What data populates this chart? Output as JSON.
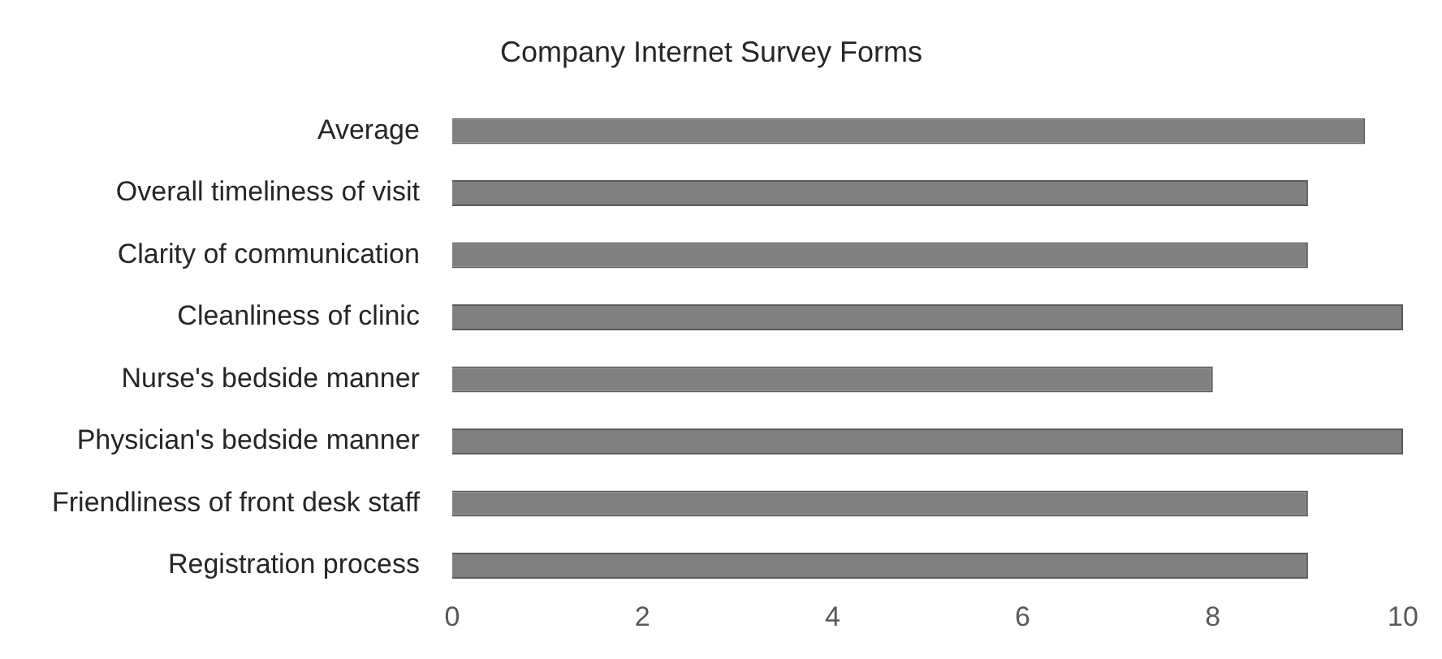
{
  "chart_data": {
    "type": "bar",
    "orientation": "horizontal",
    "title": "Company Internet Survey Forms",
    "categories": [
      "Average",
      "Overall timeliness of visit",
      "Clarity of communication",
      "Cleanliness of clinic",
      "Nurse's bedside manner",
      "Physician's bedside manner",
      "Friendliness of front desk staff",
      "Registration process"
    ],
    "values": [
      9.6,
      9,
      9,
      10,
      8,
      10,
      9,
      9
    ],
    "color": "#808080",
    "xlim": [
      0,
      10
    ],
    "xticks": [
      0,
      2,
      4,
      6,
      8,
      10
    ],
    "grid": false,
    "legend": false
  }
}
